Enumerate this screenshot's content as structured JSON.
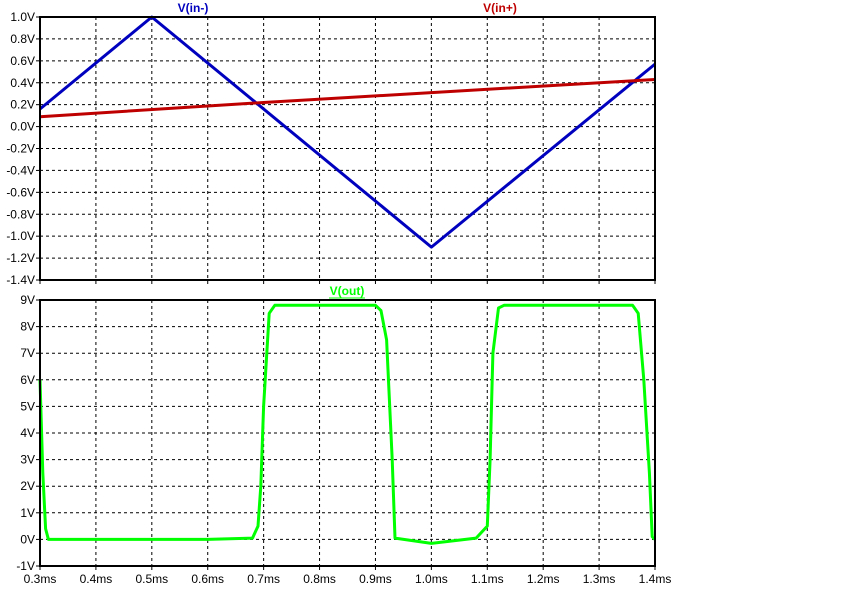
{
  "chart_data": [
    {
      "type": "line",
      "xlim": [
        0.3,
        1.4
      ],
      "ylim": [
        -1.4,
        1.0
      ],
      "grid": true,
      "legend": "top",
      "x_ticks": [
        "0.3ms",
        "0.4ms",
        "0.5ms",
        "0.6ms",
        "0.7ms",
        "0.8ms",
        "0.9ms",
        "1.0ms",
        "1.1ms",
        "1.2ms",
        "1.3ms",
        "1.4ms"
      ],
      "y_ticks": [
        {
          "value": 1.0,
          "label": "1.0V"
        },
        {
          "value": 0.8,
          "label": "0.8V"
        },
        {
          "value": 0.6,
          "label": "0.6V"
        },
        {
          "value": 0.4,
          "label": "0.4V"
        },
        {
          "value": 0.2,
          "label": "0.2V"
        },
        {
          "value": 0.0,
          "label": "0.0V"
        },
        {
          "value": -0.2,
          "label": "-0.2V"
        },
        {
          "value": -0.4,
          "label": "-0.4V"
        },
        {
          "value": -0.6,
          "label": "-0.6V"
        },
        {
          "value": -0.8,
          "label": "-0.8V"
        },
        {
          "value": -1.0,
          "label": "-1.0V"
        },
        {
          "value": -1.2,
          "label": "-1.2V"
        },
        {
          "value": -1.4,
          "label": "-1.4V"
        }
      ],
      "series": [
        {
          "name": "V(in-)",
          "color": "#0000bf",
          "x": [
            0.3,
            0.5,
            1.0,
            1.4
          ],
          "y": [
            0.16,
            1.0,
            -1.1,
            0.57
          ]
        },
        {
          "name": "V(in+)",
          "color": "#bf0000",
          "x": [
            0.3,
            0.7,
            1.0,
            1.4
          ],
          "y": [
            0.09,
            0.22,
            0.31,
            0.43
          ]
        }
      ]
    },
    {
      "type": "line",
      "xlim": [
        0.3,
        1.4
      ],
      "ylim": [
        -1,
        9
      ],
      "grid": true,
      "legend": "top",
      "x_ticks": [
        "0.3ms",
        "0.4ms",
        "0.5ms",
        "0.6ms",
        "0.7ms",
        "0.8ms",
        "0.9ms",
        "1.0ms",
        "1.1ms",
        "1.2ms",
        "1.3ms",
        "1.4ms"
      ],
      "y_ticks": [
        {
          "value": 9,
          "label": "9V"
        },
        {
          "value": 8,
          "label": "8V"
        },
        {
          "value": 7,
          "label": "7V"
        },
        {
          "value": 6,
          "label": "6V"
        },
        {
          "value": 5,
          "label": "5V"
        },
        {
          "value": 4,
          "label": "4V"
        },
        {
          "value": 3,
          "label": "3V"
        },
        {
          "value": 2,
          "label": "2V"
        },
        {
          "value": 1,
          "label": "1V"
        },
        {
          "value": 0,
          "label": "0V"
        },
        {
          "value": -1,
          "label": "-1V"
        }
      ],
      "series": [
        {
          "name": "V(out)",
          "color": "#00ff00",
          "x": [
            0.3,
            0.305,
            0.31,
            0.315,
            0.6,
            0.68,
            0.69,
            0.695,
            0.7,
            0.71,
            0.72,
            0.9,
            0.91,
            0.92,
            0.93,
            0.935,
            1.0,
            1.08,
            1.1,
            1.105,
            1.11,
            1.12,
            1.13,
            1.36,
            1.37,
            1.38,
            1.39,
            1.395,
            1.4
          ],
          "y": [
            6.0,
            2.5,
            0.4,
            0.0,
            0.0,
            0.05,
            0.5,
            2.0,
            5.0,
            8.5,
            8.8,
            8.8,
            8.6,
            7.5,
            3.0,
            0.05,
            -0.15,
            0.05,
            0.5,
            3.0,
            7.0,
            8.7,
            8.8,
            8.8,
            8.5,
            6.0,
            2.5,
            0.1,
            0.0
          ]
        }
      ]
    }
  ]
}
